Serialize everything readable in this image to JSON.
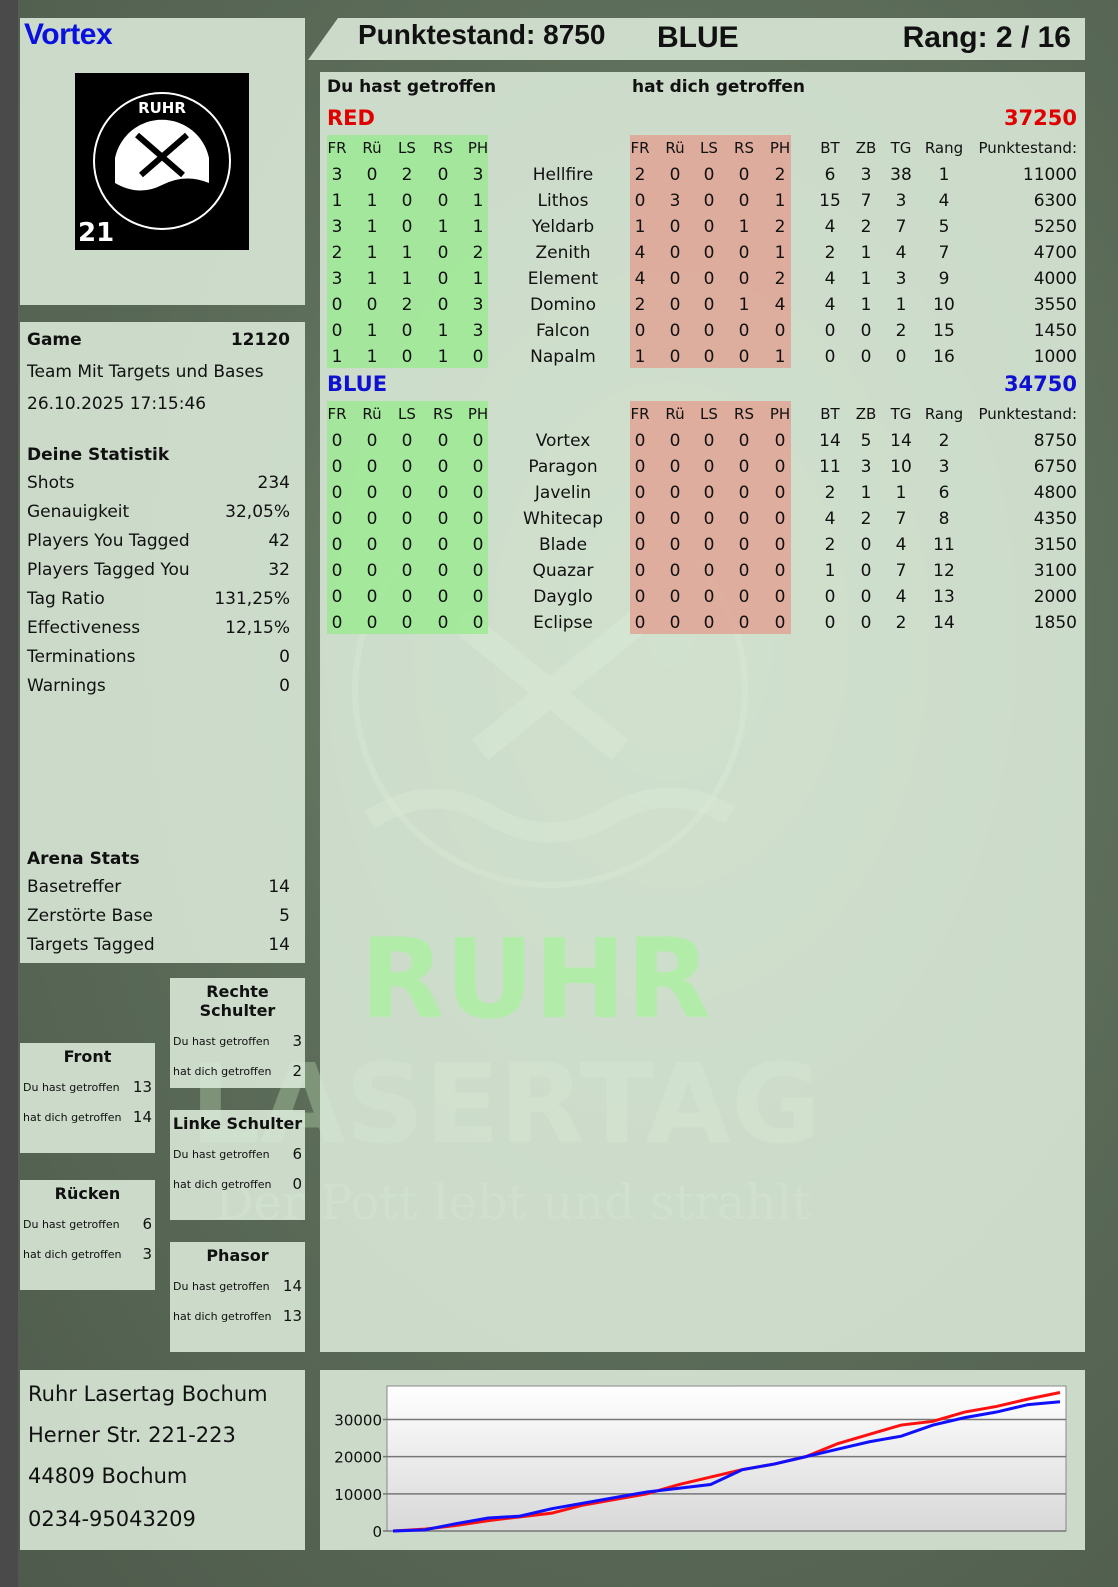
{
  "player": {
    "name": "Vortex"
  },
  "logo": {
    "text_top": "RUHR",
    "text_bottom": "LASERTAG",
    "badge": "21"
  },
  "header": {
    "score_label": "Punktestand: 8750",
    "team": "BLUE",
    "rank_label": "Rang: 2 / 16"
  },
  "main": {
    "you_hit": "Du hast getroffen",
    "hit_you": "hat dich getroffen",
    "columns_left": [
      "FR",
      "Rü",
      "LS",
      "RS",
      "PH"
    ],
    "columns_right": [
      "FR",
      "Rü",
      "LS",
      "RS",
      "PH"
    ],
    "columns_stats": [
      "BT",
      "ZB",
      "TG",
      "Rang",
      "Punktestand:"
    ],
    "teams": [
      {
        "name": "RED",
        "total": "37250",
        "color": "#e00000",
        "players": [
          {
            "name": "Hellfire",
            "given": [
              3,
              0,
              2,
              0,
              3
            ],
            "taken": [
              2,
              0,
              0,
              0,
              2
            ],
            "stats": [
              6,
              3,
              38,
              1,
              11000
            ]
          },
          {
            "name": "Lithos",
            "given": [
              1,
              1,
              0,
              0,
              1
            ],
            "taken": [
              0,
              3,
              0,
              0,
              1
            ],
            "stats": [
              15,
              7,
              3,
              4,
              6300
            ]
          },
          {
            "name": "Yeldarb",
            "given": [
              3,
              1,
              0,
              1,
              1
            ],
            "taken": [
              1,
              0,
              0,
              1,
              2
            ],
            "stats": [
              4,
              2,
              7,
              5,
              5250
            ]
          },
          {
            "name": "Zenith",
            "given": [
              2,
              1,
              1,
              0,
              2
            ],
            "taken": [
              4,
              0,
              0,
              0,
              1
            ],
            "stats": [
              2,
              1,
              4,
              7,
              4700
            ]
          },
          {
            "name": "Element",
            "given": [
              3,
              1,
              1,
              0,
              1
            ],
            "taken": [
              4,
              0,
              0,
              0,
              2
            ],
            "stats": [
              4,
              1,
              3,
              9,
              4000
            ]
          },
          {
            "name": "Domino",
            "given": [
              0,
              0,
              2,
              0,
              3
            ],
            "taken": [
              2,
              0,
              0,
              1,
              4
            ],
            "stats": [
              4,
              1,
              1,
              10,
              3550
            ]
          },
          {
            "name": "Falcon",
            "given": [
              0,
              1,
              0,
              1,
              3
            ],
            "taken": [
              0,
              0,
              0,
              0,
              0
            ],
            "stats": [
              0,
              0,
              2,
              15,
              1450
            ]
          },
          {
            "name": "Napalm",
            "given": [
              1,
              1,
              0,
              1,
              0
            ],
            "taken": [
              1,
              0,
              0,
              0,
              1
            ],
            "stats": [
              0,
              0,
              0,
              16,
              1000
            ]
          }
        ]
      },
      {
        "name": "BLUE",
        "total": "34750",
        "color": "#1010d0",
        "players": [
          {
            "name": "Vortex",
            "given": [
              0,
              0,
              0,
              0,
              0
            ],
            "taken": [
              0,
              0,
              0,
              0,
              0
            ],
            "stats": [
              14,
              5,
              14,
              2,
              8750
            ]
          },
          {
            "name": "Paragon",
            "given": [
              0,
              0,
              0,
              0,
              0
            ],
            "taken": [
              0,
              0,
              0,
              0,
              0
            ],
            "stats": [
              11,
              3,
              10,
              3,
              6750
            ]
          },
          {
            "name": "Javelin",
            "given": [
              0,
              0,
              0,
              0,
              0
            ],
            "taken": [
              0,
              0,
              0,
              0,
              0
            ],
            "stats": [
              2,
              1,
              1,
              6,
              4800
            ]
          },
          {
            "name": "Whitecap",
            "given": [
              0,
              0,
              0,
              0,
              0
            ],
            "taken": [
              0,
              0,
              0,
              0,
              0
            ],
            "stats": [
              4,
              2,
              7,
              8,
              4350
            ]
          },
          {
            "name": "Blade",
            "given": [
              0,
              0,
              0,
              0,
              0
            ],
            "taken": [
              0,
              0,
              0,
              0,
              0
            ],
            "stats": [
              2,
              0,
              4,
              11,
              3150
            ]
          },
          {
            "name": "Quazar",
            "given": [
              0,
              0,
              0,
              0,
              0
            ],
            "taken": [
              0,
              0,
              0,
              0,
              0
            ],
            "stats": [
              1,
              0,
              7,
              12,
              3100
            ]
          },
          {
            "name": "Dayglo",
            "given": [
              0,
              0,
              0,
              0,
              0
            ],
            "taken": [
              0,
              0,
              0,
              0,
              0
            ],
            "stats": [
              0,
              0,
              4,
              13,
              2000
            ]
          },
          {
            "name": "Eclipse",
            "given": [
              0,
              0,
              0,
              0,
              0
            ],
            "taken": [
              0,
              0,
              0,
              0,
              0
            ],
            "stats": [
              0,
              0,
              2,
              14,
              1850
            ]
          }
        ]
      }
    ]
  },
  "game": {
    "label": "Game",
    "id": "12120",
    "mode": "Team Mit Targets und Bases",
    "datetime": "26.10.2025 17:15:46"
  },
  "personal": {
    "title": "Deine Statistik",
    "rows": [
      {
        "label": "Shots",
        "value": "234"
      },
      {
        "label": "Genauigkeit",
        "value": "32,05%"
      },
      {
        "label": "Players You Tagged",
        "value": "42"
      },
      {
        "label": "Players Tagged You",
        "value": "32"
      },
      {
        "label": "Tag Ratio",
        "value": "131,25%"
      },
      {
        "label": "Effectiveness",
        "value": "12,15%"
      },
      {
        "label": "Terminations",
        "value": "0"
      },
      {
        "label": "Warnings",
        "value": "0"
      }
    ]
  },
  "arena": {
    "title": "Arena Stats",
    "rows": [
      {
        "label": "Basetreffer",
        "value": "14"
      },
      {
        "label": "Zerstörte Base",
        "value": "5"
      },
      {
        "label": "Targets Tagged",
        "value": "14"
      }
    ]
  },
  "zones": [
    {
      "title": "Rechte Schulter",
      "you_hit_label": "Du hast getroffen",
      "you_hit": "3",
      "hit_you_label": "hat dich getroffen",
      "hit_you": "2"
    },
    {
      "title": "Front",
      "you_hit_label": "Du hast getroffen",
      "you_hit": "13",
      "hit_you_label": "hat dich getroffen",
      "hit_you": "14"
    },
    {
      "title": "Linke Schulter",
      "you_hit_label": "Du hast getroffen",
      "you_hit": "6",
      "hit_you_label": "hat dich getroffen",
      "hit_you": "0"
    },
    {
      "title": "Rücken",
      "you_hit_label": "Du hast getroffen",
      "you_hit": "6",
      "hit_you_label": "hat dich getroffen",
      "hit_you": "3"
    },
    {
      "title": "Phasor",
      "you_hit_label": "Du hast getroffen",
      "you_hit": "14",
      "hit_you_label": "hat dich getroffen",
      "hit_you": "13"
    }
  ],
  "address": {
    "lines": [
      "Ruhr Lasertag Bochum",
      "Herner Str. 221-223",
      "44809 Bochum",
      "0234-95043209"
    ]
  },
  "watermark": {
    "line1": "RUHR",
    "line2": "LASERTAG",
    "slogan": "Der Pott lebt und strahlt"
  },
  "chart_data": {
    "type": "line",
    "title": "",
    "xlabel": "",
    "ylabel": "",
    "ylim": [
      0,
      39000
    ],
    "yticks": [
      0,
      10000,
      20000,
      30000
    ],
    "grid": true,
    "series": [
      {
        "color": "#ff1010",
        "values": [
          0,
          500,
          1500,
          2800,
          3800,
          4800,
          7000,
          8500,
          10000,
          12500,
          14500,
          16500,
          18000,
          20000,
          23500,
          26000,
          28500,
          29500,
          32000,
          33500,
          35500,
          37250
        ]
      },
      {
        "color": "#1010ff",
        "values": [
          0,
          300,
          2000,
          3500,
          4000,
          6000,
          7500,
          9000,
          10500,
          11500,
          12500,
          16500,
          18000,
          20000,
          22000,
          24000,
          25500,
          28500,
          30500,
          32000,
          34000,
          34750
        ]
      }
    ]
  }
}
